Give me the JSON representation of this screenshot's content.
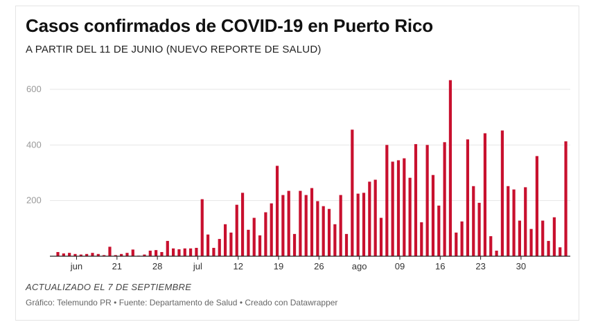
{
  "title": "Casos confirmados de COVID-19 en Puerto Rico",
  "subtitle": "A PARTIR DEL 11 DE JUNIO (NUEVO REPORTE DE SALUD)",
  "note": "ACTUALIZADO EL 7 DE SEPTIEMBRE",
  "source": "Gráfico: Telemundo PR • Fuente: Departamento de Salud • Creado con Datawrapper",
  "colors": {
    "bar": "#c8102e",
    "grid": "#e6e6e6",
    "axis": "#222222",
    "tick_text": "#999999",
    "x_text": "#333333"
  },
  "chart_data": {
    "type": "bar",
    "title": "Casos confirmados de COVID-19 en Puerto Rico",
    "subtitle": "A PARTIR DEL 11 DE JUNIO (NUEVO REPORTE DE SALUD)",
    "x_start": "2020-06-11",
    "x_tick_labels": [
      {
        "label": "jun",
        "date": "2020-06-14"
      },
      {
        "label": "21",
        "date": "2020-06-21"
      },
      {
        "label": "28",
        "date": "2020-06-28"
      },
      {
        "label": "jul",
        "date": "2020-07-05"
      },
      {
        "label": "12",
        "date": "2020-07-12"
      },
      {
        "label": "19",
        "date": "2020-07-19"
      },
      {
        "label": "26",
        "date": "2020-07-26"
      },
      {
        "label": "ago",
        "date": "2020-08-02"
      },
      {
        "label": "09",
        "date": "2020-08-09"
      },
      {
        "label": "16",
        "date": "2020-08-16"
      },
      {
        "label": "23",
        "date": "2020-08-23"
      },
      {
        "label": "30",
        "date": "2020-08-30"
      }
    ],
    "y_ticks": [
      200,
      400,
      600
    ],
    "ylim": [
      0,
      640
    ],
    "grid": true,
    "values": [
      15,
      10,
      12,
      8,
      6,
      8,
      12,
      8,
      4,
      34,
      4,
      8,
      12,
      24,
      2,
      6,
      20,
      22,
      15,
      55,
      28,
      25,
      28,
      28,
      30,
      205,
      78,
      30,
      62,
      115,
      85,
      185,
      228,
      95,
      138,
      75,
      158,
      190,
      325,
      220,
      235,
      80,
      235,
      220,
      245,
      198,
      180,
      170,
      115,
      220,
      80,
      455,
      225,
      228,
      268,
      275,
      138,
      400,
      340,
      345,
      352,
      282,
      403,
      122,
      400,
      292,
      182,
      410,
      633,
      85,
      125,
      420,
      252,
      192,
      442,
      72,
      20,
      452,
      252,
      240,
      128,
      248,
      98,
      360,
      128,
      55,
      140,
      32,
      413
    ]
  }
}
